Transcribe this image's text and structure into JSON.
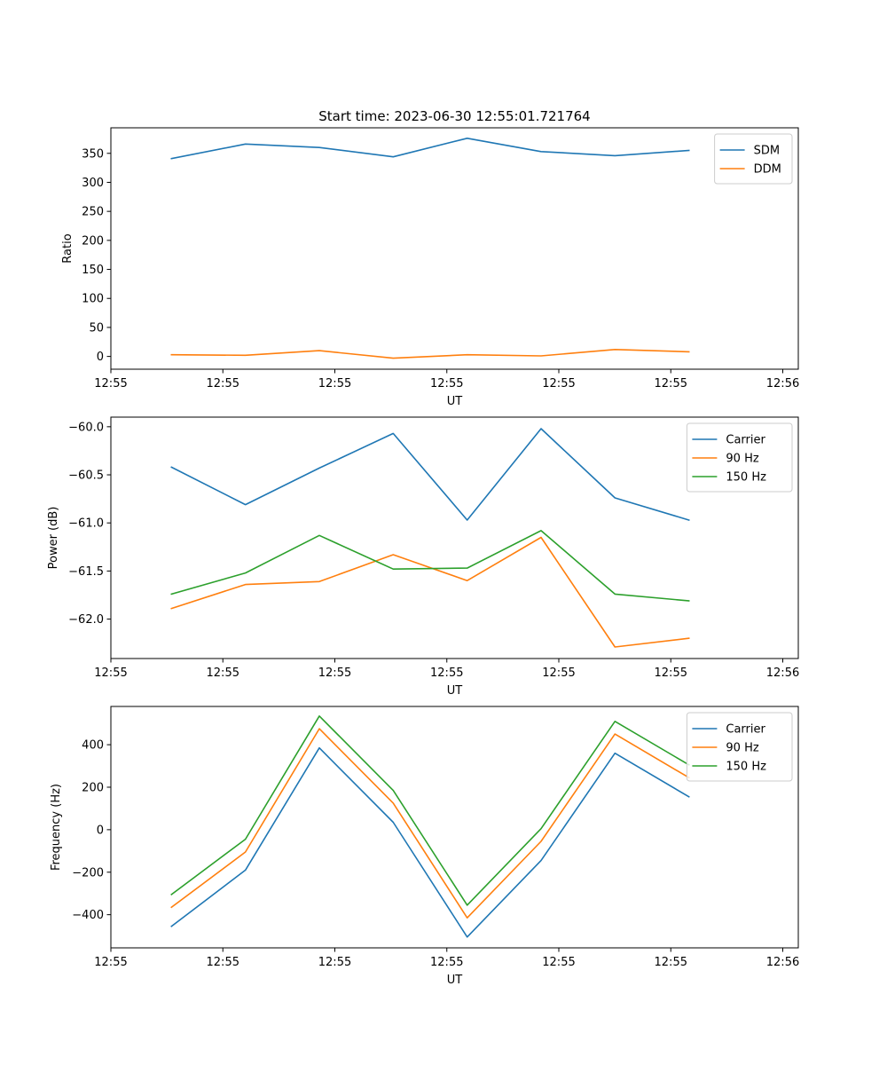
{
  "figure_title": "Start time: 2023-06-30 12:55:01.721764",
  "colors": {
    "blue": "#1f77b4",
    "orange": "#ff7f0e",
    "green": "#2ca02c"
  },
  "chart_data": [
    {
      "type": "line",
      "title": "Start time: 2023-06-30 12:55:01.721764",
      "xlabel": "UT",
      "ylabel": "Ratio",
      "x": [
        1,
        2,
        3,
        4,
        5,
        6,
        7,
        8
      ],
      "xlim": [
        0.18,
        9.48
      ],
      "x_ticks": [
        0.18,
        1.695,
        3.21,
        4.725,
        6.24,
        7.755,
        9.27
      ],
      "x_tick_labels": [
        "12:55",
        "12:55",
        "12:55",
        "12:55",
        "12:55",
        "12:55",
        "12:56"
      ],
      "ylim": [
        -22,
        394
      ],
      "y_ticks": [
        0,
        50,
        100,
        150,
        200,
        250,
        300,
        350
      ],
      "y_tick_labels": [
        "0",
        "50",
        "100",
        "150",
        "200",
        "250",
        "300",
        "350"
      ],
      "legend": "top-right",
      "grid": false,
      "series": [
        {
          "name": "SDM",
          "color": "#1f77b4",
          "values": [
            341,
            366,
            360,
            344,
            376,
            353,
            346,
            355
          ]
        },
        {
          "name": "DDM",
          "color": "#ff7f0e",
          "values": [
            3,
            2,
            10,
            -3,
            3,
            1,
            12,
            8
          ]
        }
      ]
    },
    {
      "type": "line",
      "title": "",
      "xlabel": "UT",
      "ylabel": "Power (dB)",
      "x": [
        1,
        2,
        3,
        4,
        5,
        6,
        7,
        8
      ],
      "xlim": [
        0.18,
        9.48
      ],
      "x_ticks": [
        0.18,
        1.695,
        3.21,
        4.725,
        6.24,
        7.755,
        9.27
      ],
      "x_tick_labels": [
        "12:55",
        "12:55",
        "12:55",
        "12:55",
        "12:55",
        "12:55",
        "12:56"
      ],
      "ylim": [
        -62.41,
        -59.9
      ],
      "y_ticks": [
        -62.0,
        -61.5,
        -61.0,
        -60.5,
        -60.0
      ],
      "y_tick_labels": [
        "−62.0",
        "−61.5",
        "−61.0",
        "−60.5",
        "−60.0"
      ],
      "legend": "top-right",
      "grid": false,
      "series": [
        {
          "name": "Carrier",
          "color": "#1f77b4",
          "values": [
            -60.42,
            -60.81,
            -60.43,
            -60.07,
            -60.97,
            -60.02,
            -60.74,
            -60.97
          ]
        },
        {
          "name": "90 Hz",
          "color": "#ff7f0e",
          "values": [
            -61.89,
            -61.64,
            -61.61,
            -61.33,
            -61.6,
            -61.15,
            -62.29,
            -62.2
          ]
        },
        {
          "name": "150 Hz",
          "color": "#2ca02c",
          "values": [
            -61.74,
            -61.52,
            -61.13,
            -61.48,
            -61.47,
            -61.08,
            -61.74,
            -61.81
          ]
        }
      ]
    },
    {
      "type": "line",
      "title": "",
      "xlabel": "UT",
      "ylabel": "Frequency (Hz)",
      "x": [
        1,
        2,
        3,
        4,
        5,
        6,
        7,
        8
      ],
      "xlim": [
        0.18,
        9.48
      ],
      "x_ticks": [
        0.18,
        1.695,
        3.21,
        4.725,
        6.24,
        7.755,
        9.27
      ],
      "x_tick_labels": [
        "12:55",
        "12:55",
        "12:55",
        "12:55",
        "12:55",
        "12:55",
        "12:56"
      ],
      "ylim": [
        -556,
        580
      ],
      "y_ticks": [
        -400,
        -200,
        0,
        200,
        400
      ],
      "y_tick_labels": [
        "−400",
        "−200",
        "0",
        "200",
        "400"
      ],
      "legend": "top-right",
      "grid": false,
      "series": [
        {
          "name": "Carrier",
          "color": "#1f77b4",
          "values": [
            -455,
            -190,
            385,
            35,
            -505,
            -145,
            360,
            155
          ]
        },
        {
          "name": "90 Hz",
          "color": "#ff7f0e",
          "values": [
            -365,
            -105,
            475,
            125,
            -415,
            -55,
            450,
            245
          ]
        },
        {
          "name": "150 Hz",
          "color": "#2ca02c",
          "values": [
            -305,
            -45,
            535,
            185,
            -355,
            5,
            510,
            305
          ]
        }
      ]
    }
  ]
}
